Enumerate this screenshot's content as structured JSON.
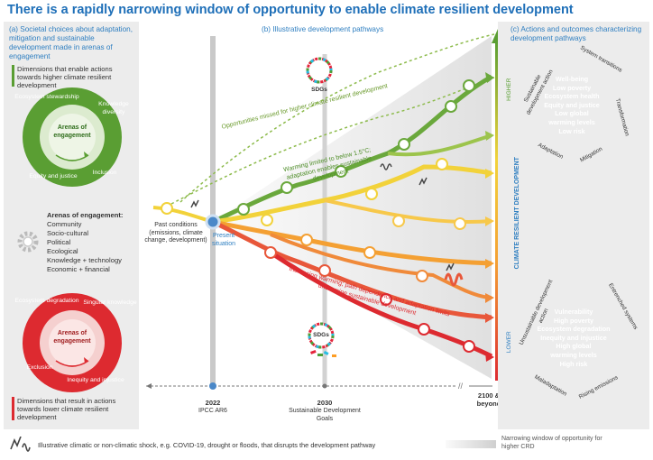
{
  "title": "There is a rapidly narrowing window of opportunity to enable climate resilient development",
  "panel_a": {
    "header": "(a) Societal choices about adaptation, mitigation and sustainable development made in arenas of engagement",
    "enable_text": "Dimensions that enable actions towards higher climate resilient development",
    "result_text": "Dimensions that result in actions towards lower climate resilient development",
    "green_wheel": {
      "center": "Arenas of engagement",
      "segments": [
        "Ecosystem stewardship",
        "Knowledge diversity",
        "Equity and justice",
        "Inclusion"
      ]
    },
    "red_wheel": {
      "center": "Arenas of engagement",
      "segments": [
        "Ecosystem degradation",
        "Singular knowledge",
        "Exclusion",
        "Inequity and injustice"
      ]
    },
    "arenas_title": "Arenas of engagement:",
    "arenas": [
      "Community",
      "Socio-cultural",
      "Political",
      "Ecological",
      "Knowledge + technology",
      "Economic + financial"
    ]
  },
  "panel_b": {
    "header": "(b) Illustrative development pathways",
    "sdgs": "SDGs",
    "past_conditions": "Past conditions (emissions, climate change, development)",
    "present": "Present situation",
    "missed": "Opportunities missed for higher climate resilient development",
    "warming_limited": "Warming limited to below 1.5°C; adaptation enables sustainable development",
    "increasing_warming": "Increasing warming; path dependence and adaptation limits undermine sustainable development",
    "axis": {
      "t2022": "2022",
      "t2022_sub": "IPCC AR6",
      "t2030": "2030",
      "t2030_sub": "Sustainable Development Goals",
      "t2100": "2100 & beyond"
    }
  },
  "panel_c": {
    "header": "(c) Actions and outcomes characterizing development pathways",
    "axis_label": "CLIMATE RESILIENT DEVELOPMENT",
    "higher": "HIGHER",
    "lower": "LOWER",
    "green_circle": {
      "outcomes": [
        "Well-being",
        "Low poverty",
        "Ecosystem health",
        "Equity and justice",
        "Low global",
        "warming levels",
        "Low risk"
      ],
      "ring": [
        "Sustainable development action",
        "System transitions",
        "Transformation",
        "Mitigation",
        "Adaptation"
      ]
    },
    "red_circle": {
      "outcomes": [
        "Vulnerability",
        "High poverty",
        "Ecosystem degradation",
        "Inequity and injustice",
        "High global",
        "warming levels",
        "High risk"
      ],
      "ring": [
        "Unsustainable development action",
        "Entrenched systems",
        "Rising emissions",
        "Maladaptation"
      ]
    }
  },
  "footer": {
    "shock": "Illustrative climatic or non-climatic shock, e.g. COVID-19, drought or floods, that disrupts the development pathway",
    "window": "Narrowing window of opportunity for higher CRD"
  },
  "colors": {
    "green": "#5a9e33",
    "red": "#dd2a30",
    "orange": "#f4a033",
    "yellow": "#f2d23a",
    "blue": "#2f7fc1"
  }
}
